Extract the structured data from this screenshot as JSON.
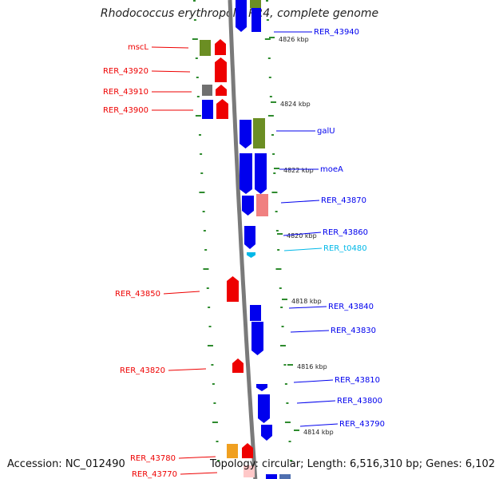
{
  "title": "Rhodococcus erythropolis PR4, complete genome",
  "footer": {
    "accession": "Accession: NC_012490",
    "summary": "Topology: circular; Length: 6,516,310 bp; Genes: 6,102"
  },
  "colors": {
    "forward_blue": "#0000ee",
    "reverse_red": "#ee0000",
    "olive": "#6b8e23",
    "gray": "#707070",
    "salmon": "#f08080",
    "orange": "#f0a020",
    "trna_cyan": "#00b8e8",
    "backbone": "#7a7a7a",
    "tick_green": "#2e8b2e"
  },
  "ticks": [
    "4826 kbp",
    "4824 kbp",
    "4822 kbp",
    "4820 kbp",
    "4818 kbp",
    "4816 kbp",
    "4814 kbp"
  ],
  "left_genes": [
    "mscL",
    "RER_43920",
    "RER_43910",
    "RER_43900",
    "RER_43850",
    "RER_43820",
    "RER_43780",
    "RER_43770"
  ],
  "right_genes": [
    "RER_43940",
    "galU",
    "moeA",
    "RER_43870",
    "RER_43860",
    "RER_t0480",
    "RER_43840",
    "RER_43830",
    "RER_43810",
    "RER_43800",
    "RER_43790"
  ]
}
